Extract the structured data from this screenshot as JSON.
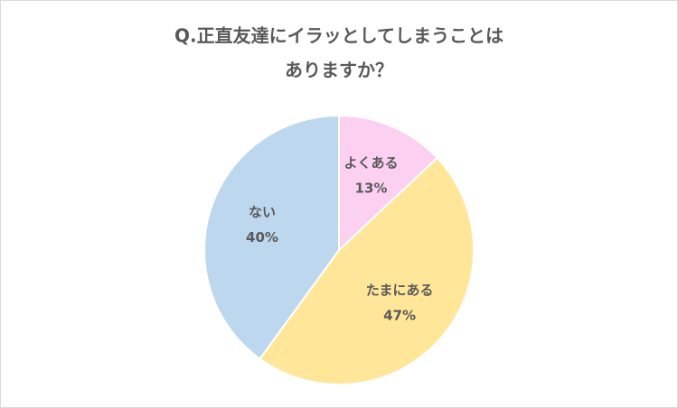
{
  "chart_data": {
    "type": "pie",
    "title": [
      "Q.正直友達にイラッとしてしまうことは",
      "ありますか？"
    ],
    "categories": [
      "よくある",
      "たまにある",
      "ない"
    ],
    "values": [
      13,
      47,
      40
    ],
    "value_labels": [
      "13%",
      "47%",
      "40%"
    ],
    "colors": [
      "#fbd0f1",
      "#ffe699",
      "#bdd7ee"
    ]
  }
}
